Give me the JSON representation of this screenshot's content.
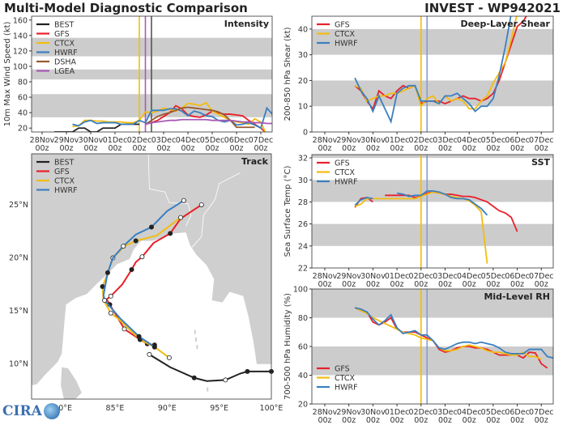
{
  "header": {
    "left_title": "Multi-Model Diagnostic Comparison",
    "right_title": "INVEST - WP942021"
  },
  "logo_text": "CIRA",
  "colors": {
    "BEST": "#222222",
    "GFS": "#e8202a",
    "CTCX": "#f2bc0f",
    "HWRF": "#3a7fc0",
    "DSHA": "#9a5a2e",
    "LGEA": "#a85ab5",
    "band": "#cccccc",
    "land": "#cfcfcf"
  },
  "x_ticks": [
    [
      "28Nov",
      "00z"
    ],
    [
      "29Nov",
      "00z"
    ],
    [
      "30Nov",
      "00z"
    ],
    [
      "01Dec",
      "00z"
    ],
    [
      "02Dec",
      "00z"
    ],
    [
      "03Dec",
      "00z"
    ],
    [
      "04Dec",
      "00z"
    ],
    [
      "05Dec",
      "00z"
    ],
    [
      "06Dec",
      "00z"
    ],
    [
      "07Dec",
      "00z"
    ]
  ],
  "chart_data": [
    {
      "id": "intensity",
      "type": "line",
      "panel_label": "Intensity",
      "ylabel": "10m Max Wind Speed (kt)",
      "ylim": [
        15,
        165
      ],
      "yticks": [
        20,
        40,
        60,
        80,
        100,
        120,
        140,
        160
      ],
      "bands": [
        [
          34,
          64
        ],
        [
          83,
          96
        ],
        [
          113,
          137
        ]
      ],
      "legend": "top-left",
      "step_hours": 6,
      "vlines": [
        {
          "time": "02Dec 00z",
          "color": "#f2bc0f"
        },
        {
          "time": "02Dec 06z",
          "color": "#a85ab5"
        },
        {
          "time": "02Dec 12z",
          "color": "#555555"
        }
      ],
      "series": [
        {
          "name": "BEST",
          "start": "28Nov 12z",
          "values": [
            15,
            15,
            15,
            15,
            20,
            20,
            15,
            15,
            20,
            20,
            20,
            25,
            25,
            25,
            25
          ]
        },
        {
          "name": "GFS",
          "start": "02Dec 06z",
          "values": [
            25,
            27,
            30,
            35,
            40,
            49,
            45,
            37,
            35,
            34,
            37,
            42,
            40,
            38,
            38,
            37,
            36,
            30,
            25,
            20,
            13
          ]
        },
        {
          "name": "CTCX",
          "start": "29Nov 06z",
          "values": [
            22,
            23,
            30,
            30,
            29,
            29,
            28,
            28,
            28,
            27,
            27,
            30,
            41,
            40,
            42,
            46,
            44,
            42,
            46,
            52,
            51,
            49,
            53,
            42,
            38,
            34,
            30,
            28,
            27,
            25,
            32,
            28,
            10
          ]
        },
        {
          "name": "HWRF",
          "start": "29Nov 06z",
          "values": [
            25,
            23,
            28,
            30,
            26,
            27,
            27,
            27,
            25,
            25,
            25,
            30,
            27,
            43,
            43,
            43,
            45,
            45,
            42,
            36,
            42,
            40,
            36,
            35,
            30,
            28,
            30,
            24,
            25,
            27,
            24,
            20,
            46,
            37
          ]
        },
        {
          "name": "DSHA",
          "start": "02Dec 06z",
          "values": [
            25,
            30,
            35,
            38,
            40,
            43,
            46,
            47,
            46,
            45,
            44,
            43,
            41,
            37,
            30,
            21,
            21,
            21,
            21
          ]
        },
        {
          "name": "LGEA",
          "start": "02Dec 06z",
          "values": [
            25,
            27,
            28,
            29,
            30,
            30,
            31,
            31,
            31,
            31,
            31,
            30,
            30,
            30,
            30,
            29,
            28,
            28,
            27,
            27,
            26,
            26,
            26
          ]
        }
      ]
    },
    {
      "id": "shear",
      "type": "line",
      "panel_label": "Deep-Layer Shear",
      "ylabel": "200-850 hPa Shear (kt)",
      "ylim": [
        0,
        45
      ],
      "yticks": [
        0,
        10,
        20,
        30,
        40
      ],
      "bands": [
        [
          10,
          20
        ],
        [
          30,
          40
        ]
      ],
      "legend": "top-left",
      "step_hours": 6,
      "vlines": [
        {
          "time": "02Dec 00z",
          "color": "#f2bc0f"
        },
        {
          "time": "02Dec 06z",
          "color": "#8a9cc8"
        }
      ],
      "series": [
        {
          "name": "GFS",
          "start": "29Nov 06z",
          "values": [
            18,
            16,
            12,
            9,
            16,
            14,
            13,
            16,
            18,
            17,
            18,
            11,
            12,
            12,
            12,
            11,
            12,
            13,
            14,
            13,
            13,
            12,
            13,
            15,
            20,
            27,
            34,
            41,
            43,
            47
          ]
        },
        {
          "name": "CTCX",
          "start": "29Nov 06z",
          "values": [
            18,
            17,
            12,
            13,
            14,
            14,
            15,
            15,
            16,
            17,
            18,
            10,
            13,
            14,
            11,
            14,
            12,
            13,
            12,
            9,
            9,
            12,
            14,
            19,
            23,
            27,
            36,
            46
          ]
        },
        {
          "name": "HWRF",
          "start": "29Nov 06z",
          "values": [
            21,
            16,
            13,
            8,
            14,
            9,
            4,
            15,
            17,
            18,
            18,
            12,
            12,
            12,
            11,
            14,
            14,
            15,
            13,
            11,
            8,
            10,
            10,
            13,
            22,
            33,
            46
          ]
        }
      ]
    },
    {
      "id": "sst",
      "type": "line",
      "panel_label": "SST",
      "ylabel": "Sea Surface Temp (°C)",
      "ylim": [
        22,
        32.3
      ],
      "yticks": [
        22,
        24,
        26,
        28,
        30,
        32
      ],
      "bands": [
        [
          24,
          26
        ],
        [
          28,
          30
        ],
        [
          32,
          33
        ]
      ],
      "legend": "top-left",
      "step_hours": 6,
      "vlines": [
        {
          "time": "02Dec 00z",
          "color": "#f2bc0f"
        },
        {
          "time": "02Dec 06z",
          "color": "#8a9cc8"
        }
      ],
      "series": [
        {
          "name": "GFS",
          "start": "29Nov 06z",
          "values": [
            27.5,
            28.3,
            28.4,
            28.0,
            null,
            28.6,
            28.6,
            28.6,
            28.6,
            28.6,
            28.4,
            28.5,
            28.8,
            28.9,
            28.8,
            28.7,
            28.7,
            28.6,
            28.5,
            28.5,
            28.4,
            28.2,
            28.0,
            27.6,
            27.2,
            27.0,
            26.6,
            25.3
          ]
        },
        {
          "name": "CTCX",
          "start": "29Nov 06z",
          "values": [
            27.6,
            27.8,
            28.3,
            28.3,
            28.3,
            28.3,
            28.3,
            28.3,
            28.3,
            28.3,
            28.3,
            28.5,
            28.7,
            28.9,
            28.8,
            28.7,
            28.5,
            28.4,
            28.3,
            28.1,
            27.7,
            27.1,
            22.4
          ]
        },
        {
          "name": "HWRF",
          "start": "29Nov 06z",
          "values": [
            27.7,
            28.2,
            28.4,
            28.3,
            null,
            null,
            null,
            28.8,
            28.7,
            28.5,
            28.6,
            28.6,
            29.0,
            29.0,
            28.9,
            28.7,
            28.4,
            28.3,
            28.3,
            28.2,
            27.8,
            27.4,
            26.8
          ]
        }
      ]
    },
    {
      "id": "rh",
      "type": "line",
      "panel_label": "Mid-Level RH",
      "ylabel": "700-500 hPa Humidity (%)",
      "ylim": [
        20,
        100
      ],
      "yticks": [
        20,
        40,
        60,
        80,
        100
      ],
      "bands": [
        [
          40,
          60
        ],
        [
          80,
          100
        ]
      ],
      "legend": "bottom-left",
      "step_hours": 6,
      "vlines": [
        {
          "time": "02Dec 00z",
          "color": "#f2bc0f"
        },
        {
          "time": "02Dec 06z",
          "color": "#8a9cc8"
        }
      ],
      "series": [
        {
          "name": "GFS",
          "start": "29Nov 06z",
          "values": [
            87,
            85,
            84,
            77,
            75,
            77,
            80,
            72,
            70,
            70,
            70,
            68,
            66,
            64,
            58,
            56,
            57,
            59,
            60,
            60,
            59,
            59,
            58,
            56,
            54,
            54,
            54,
            54,
            52,
            56,
            55.5,
            48,
            45
          ]
        },
        {
          "name": "CTCX",
          "start": "29Nov 06z",
          "values": [
            87,
            85,
            83,
            80,
            78,
            76,
            74,
            72,
            70,
            69,
            68,
            66,
            65,
            64,
            59,
            57,
            57,
            58,
            60,
            61,
            60,
            59,
            57,
            56,
            56,
            55,
            54,
            54,
            56,
            53,
            53,
            51
          ]
        },
        {
          "name": "HWRF",
          "start": "29Nov 06z",
          "values": [
            87,
            86,
            84,
            79,
            75,
            78,
            82,
            73,
            69,
            70,
            71,
            68,
            68,
            64,
            59,
            58,
            60,
            62,
            63,
            63,
            62,
            63,
            62,
            61,
            59,
            56,
            55,
            55,
            55,
            58,
            58,
            58,
            53,
            52
          ]
        }
      ]
    },
    {
      "id": "track",
      "type": "line",
      "panel_label": "Track",
      "xlim": [
        77,
        100
      ],
      "ylim": [
        6.7,
        29.8
      ],
      "xticks": [
        "80°E",
        "85°E",
        "90°E",
        "95°E",
        "100°E"
      ],
      "xtick_values": [
        80,
        85,
        90,
        95,
        100
      ],
      "yticks": [
        "10°N",
        "15°N",
        "20°N",
        "25°N"
      ],
      "ytick_values": [
        10,
        15,
        20,
        25
      ],
      "legend": "top-left",
      "series": [
        {
          "name": "BEST",
          "points": [
            [
              88.3,
              10.9
            ],
            [
              90.3,
              9.7
            ],
            [
              92.6,
              8.7
            ],
            [
              93.8,
              8.4
            ],
            [
              95.6,
              8.5
            ],
            [
              97.0,
              9.1
            ],
            [
              97.7,
              9.3
            ],
            [
              100,
              9.3
            ]
          ]
        },
        {
          "name": "GFS",
          "points": [
            [
              93.3,
              25
            ],
            [
              91.3,
              23.7
            ],
            [
              90.3,
              22.3
            ],
            [
              88.7,
              21.4
            ],
            [
              87.6,
              20.1
            ],
            [
              87.0,
              19.6
            ],
            [
              86.6,
              18.9
            ],
            [
              85.7,
              17.5
            ],
            [
              84.6,
              16.4
            ],
            [
              84.2,
              16.1
            ],
            [
              84.5,
              15.6
            ],
            [
              85.3,
              14.3
            ],
            [
              85.9,
              13.3
            ],
            [
              87.4,
              12.3
            ],
            [
              88.1,
              11.9
            ],
            [
              88.8,
              11.8
            ]
          ]
        },
        {
          "name": "CTCX",
          "points": [
            [
              91.3,
              23.8
            ],
            [
              89.0,
              22.1
            ],
            [
              87.0,
              21.6
            ],
            [
              85.9,
              21.1
            ],
            [
              84.8,
              20.0
            ],
            [
              84.2,
              18.3
            ],
            [
              83.8,
              17.3
            ],
            [
              83.9,
              16.0
            ],
            [
              84.6,
              14.8
            ],
            [
              85.4,
              14.2
            ],
            [
              87.4,
              12.3
            ],
            [
              88.8,
              11.6
            ],
            [
              90.2,
              10.6
            ]
          ]
        },
        {
          "name": "HWRF",
          "points": [
            [
              91.6,
              25.4
            ],
            [
              90.0,
              24.4
            ],
            [
              88.5,
              22.9
            ],
            [
              87.0,
              22.2
            ],
            [
              85.8,
              21.1
            ],
            [
              84.8,
              20.0
            ],
            [
              84.3,
              18.6
            ],
            [
              83.9,
              16.5
            ],
            [
              84.0,
              16.0
            ],
            [
              85.5,
              14.3
            ],
            [
              87.3,
              12.6
            ],
            [
              88.8,
              11.6
            ]
          ]
        }
      ]
    }
  ]
}
